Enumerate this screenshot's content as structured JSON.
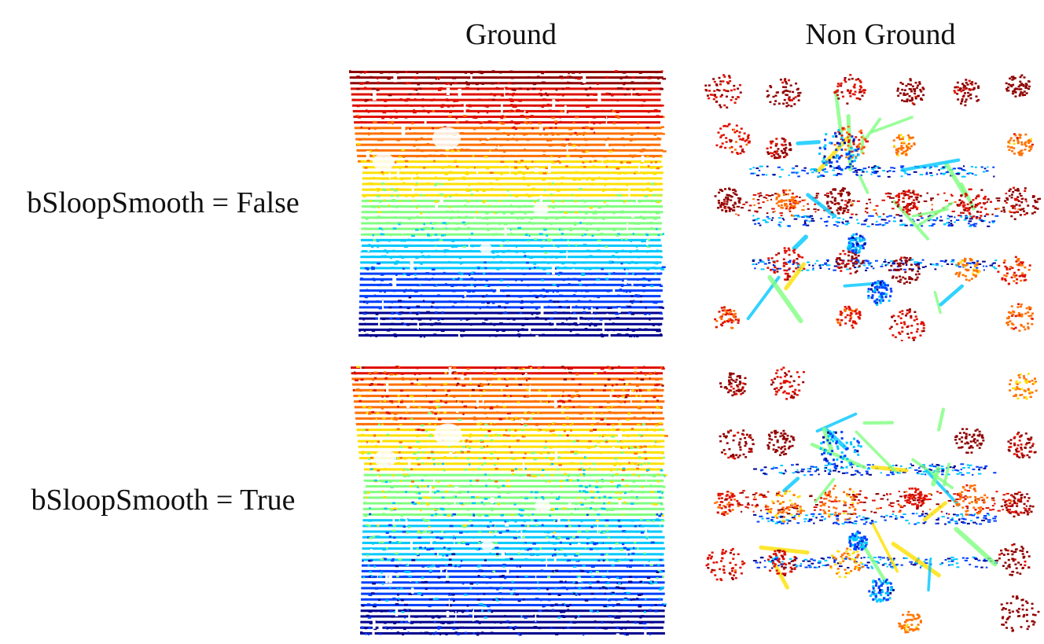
{
  "column_headers": [
    "Ground",
    "Non Ground"
  ],
  "row_labels": [
    "bSloopSmooth = False",
    "bSloopSmooth = True"
  ],
  "panels": [
    {
      "kind": "ground",
      "smooth": false
    },
    {
      "kind": "nonground",
      "smooth": false
    },
    {
      "kind": "ground",
      "smooth": true
    },
    {
      "kind": "nonground",
      "smooth": true
    }
  ],
  "colormap": [
    "#00008f",
    "#0040ff",
    "#00c8ff",
    "#80ff80",
    "#ffe000",
    "#ff7000",
    "#e01000",
    "#8f0000"
  ]
}
